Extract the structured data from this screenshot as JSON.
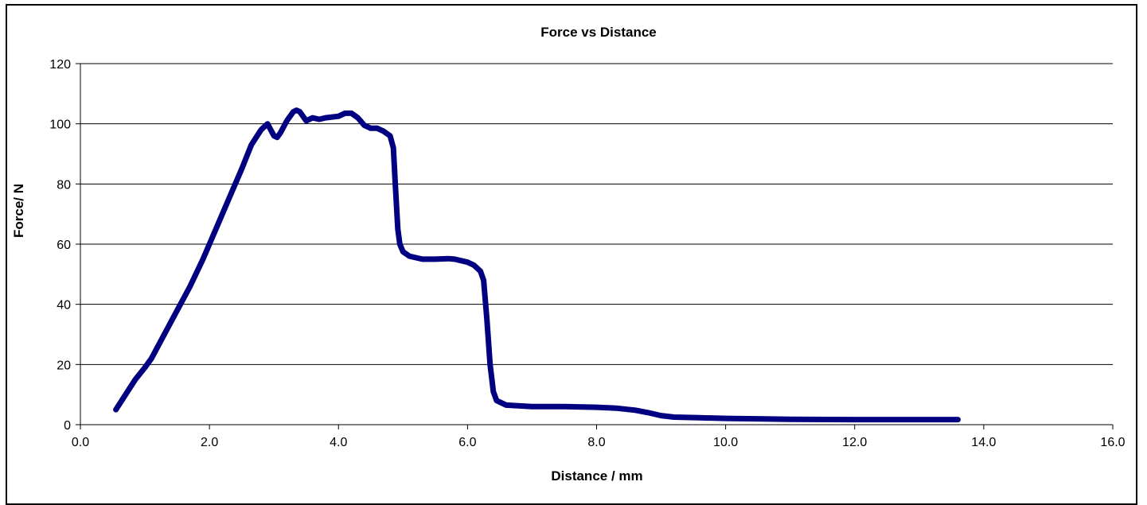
{
  "chart_data": {
    "type": "line",
    "title": "Force vs Distance",
    "xlabel": "Distance /  mm",
    "ylabel": "Force/  N",
    "xlim": [
      0,
      16
    ],
    "ylim": [
      0,
      120
    ],
    "x_ticks": [
      "0.0",
      "2.0",
      "4.0",
      "6.0",
      "8.0",
      "10.0",
      "12.0",
      "14.0",
      "16.0"
    ],
    "y_ticks": [
      "0",
      "20",
      "40",
      "60",
      "80",
      "100",
      "120"
    ],
    "grid": "horizontal",
    "legend": "none",
    "series": [
      {
        "color": "#000080",
        "points": [
          [
            0.55,
            5
          ],
          [
            0.7,
            10
          ],
          [
            0.85,
            15
          ],
          [
            1.0,
            19
          ],
          [
            1.1,
            22
          ],
          [
            1.3,
            30
          ],
          [
            1.5,
            38
          ],
          [
            1.7,
            46
          ],
          [
            1.9,
            55
          ],
          [
            2.1,
            65
          ],
          [
            2.3,
            75
          ],
          [
            2.5,
            85
          ],
          [
            2.65,
            93
          ],
          [
            2.8,
            98
          ],
          [
            2.9,
            100
          ],
          [
            2.95,
            98
          ],
          [
            3.0,
            96
          ],
          [
            3.05,
            95.5
          ],
          [
            3.1,
            97
          ],
          [
            3.2,
            101
          ],
          [
            3.3,
            104
          ],
          [
            3.35,
            104.5
          ],
          [
            3.4,
            104
          ],
          [
            3.5,
            101
          ],
          [
            3.6,
            102
          ],
          [
            3.7,
            101.5
          ],
          [
            3.8,
            102
          ],
          [
            4.0,
            102.5
          ],
          [
            4.1,
            103.5
          ],
          [
            4.2,
            103.5
          ],
          [
            4.3,
            102
          ],
          [
            4.4,
            99.5
          ],
          [
            4.5,
            98.5
          ],
          [
            4.6,
            98.5
          ],
          [
            4.7,
            97.5
          ],
          [
            4.8,
            96
          ],
          [
            4.85,
            92
          ],
          [
            4.88,
            80
          ],
          [
            4.92,
            65
          ],
          [
            4.95,
            60
          ],
          [
            5.0,
            57.5
          ],
          [
            5.1,
            56
          ],
          [
            5.2,
            55.5
          ],
          [
            5.3,
            55
          ],
          [
            5.5,
            55
          ],
          [
            5.7,
            55.2
          ],
          [
            5.8,
            55
          ],
          [
            6.0,
            54
          ],
          [
            6.1,
            53
          ],
          [
            6.2,
            51
          ],
          [
            6.25,
            48
          ],
          [
            6.3,
            35
          ],
          [
            6.35,
            20
          ],
          [
            6.4,
            11
          ],
          [
            6.45,
            8
          ],
          [
            6.6,
            6.5
          ],
          [
            7.0,
            6
          ],
          [
            7.5,
            6
          ],
          [
            8.0,
            5.8
          ],
          [
            8.3,
            5.5
          ],
          [
            8.6,
            4.8
          ],
          [
            8.8,
            4
          ],
          [
            9.0,
            3
          ],
          [
            9.2,
            2.5
          ],
          [
            9.6,
            2.3
          ],
          [
            10.0,
            2.1
          ],
          [
            10.6,
            1.9
          ],
          [
            11.0,
            1.8
          ],
          [
            12.0,
            1.7
          ],
          [
            13.0,
            1.7
          ],
          [
            13.6,
            1.7
          ]
        ]
      }
    ]
  }
}
